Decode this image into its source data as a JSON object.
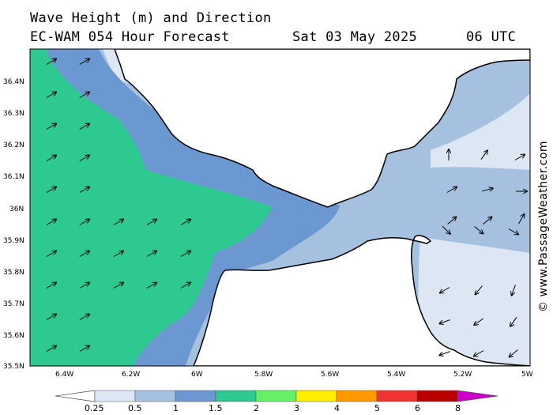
{
  "header": {
    "title_line1": "Wave Height (m) and Direction",
    "title_line2": "EC-WAM 054 Hour Forecast",
    "date": "Sat 03 May 2025",
    "time": "06 UTC"
  },
  "credit": "© www.PassageWeather.com",
  "axes": {
    "lat_labels": [
      "36.4N",
      "36.3N",
      "36.2N",
      "36.1N",
      "36N",
      "35.9N",
      "35.8N",
      "35.7N",
      "35.6N",
      "35.5N"
    ],
    "lon_labels": [
      "6.4W",
      "6.2W",
      "6W",
      "5.8W",
      "5.6W",
      "5.4W",
      "5.2W",
      "5W"
    ]
  },
  "scale": {
    "labels": [
      "0.25",
      "0.5",
      "1",
      "1.5",
      "2",
      "3",
      "4",
      "5",
      "6",
      "8"
    ],
    "colors": [
      "#ffffff",
      "#dde6f3",
      "#a6c0e0",
      "#6b98d1",
      "#2ec891",
      "#66f066",
      "#ffee00",
      "#ff9900",
      "#ee3333",
      "#bb0000",
      "#cc00cc"
    ]
  },
  "colors": {
    "band_025_05": "#dde6f3",
    "band_05_1": "#a6c0e0",
    "band_1_15": "#6b98d1",
    "band_15_2": "#2ec891",
    "land": "#ffffff"
  }
}
